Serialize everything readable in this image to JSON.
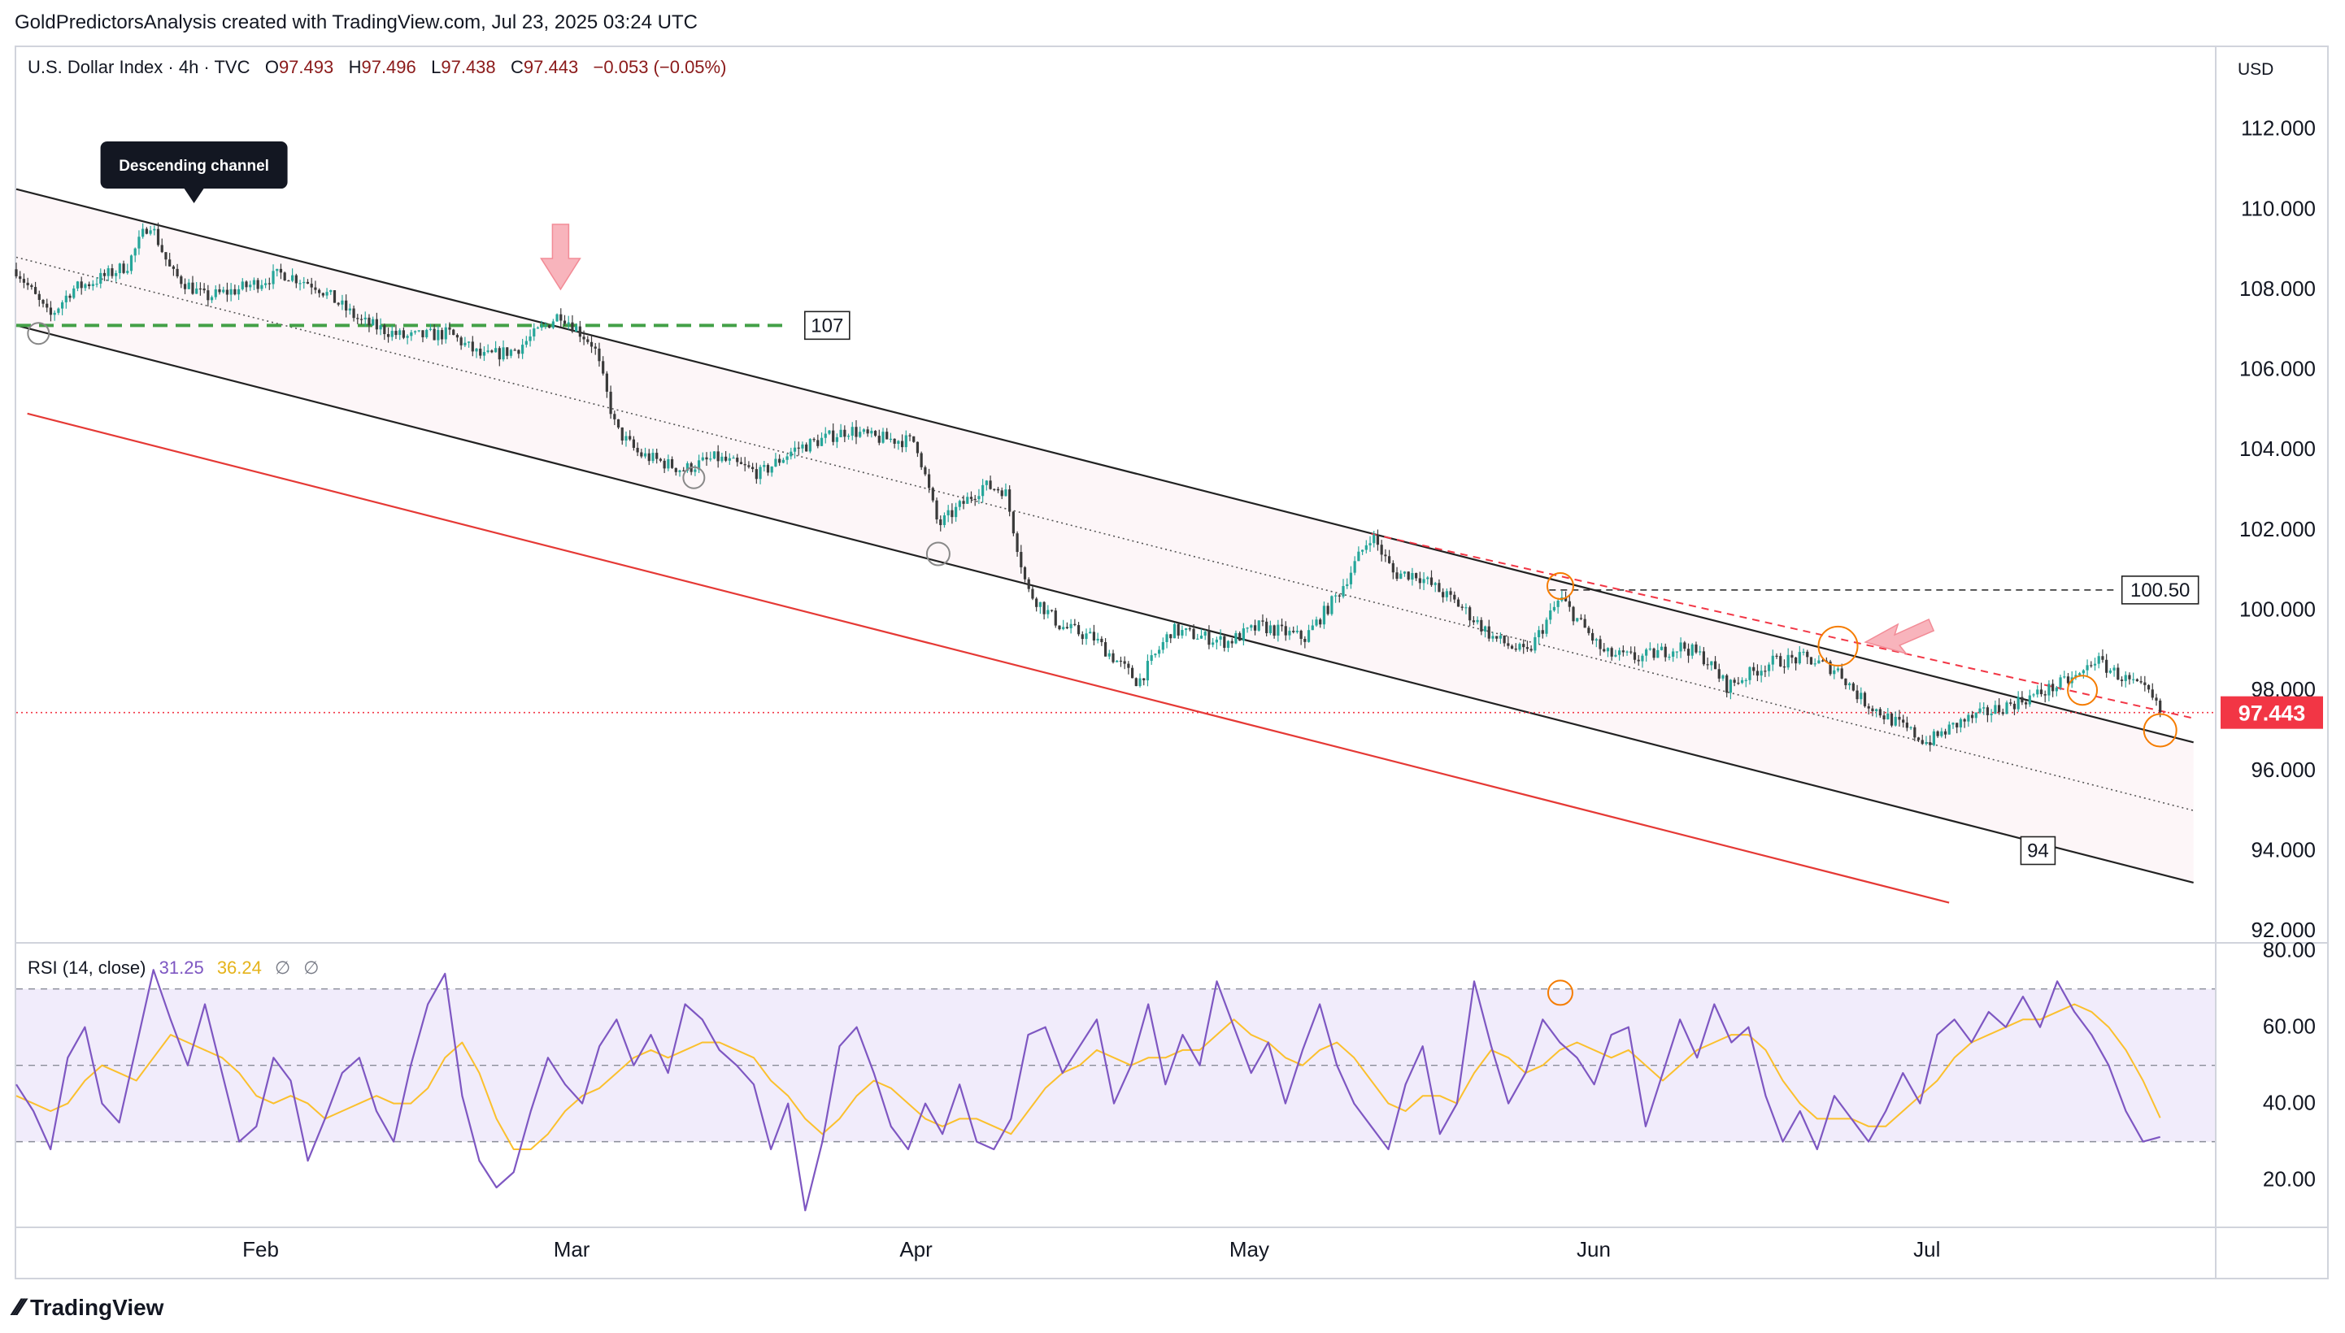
{
  "header": {
    "attribution": "GoldPredictorsAnalysis created with TradingView.com, Jul 23, 2025 03:24 UTC"
  },
  "symbol_legend": {
    "name": "U.S. Dollar Index · 4h · TVC",
    "o_label": "O",
    "o_value": "97.493",
    "h_label": "H",
    "h_value": "97.496",
    "l_label": "L",
    "l_value": "97.438",
    "c_label": "C",
    "c_value": "97.443",
    "change": "−0.053 (−0.05%)"
  },
  "currency": "USD",
  "rsi_legend": {
    "name": "RSI (14, close)",
    "rsi_value": "31.25",
    "ma_value": "36.24",
    "empty1": "∅",
    "empty2": "∅"
  },
  "footer": {
    "brand": "TradingView"
  },
  "colors": {
    "candle_up": "#26a69a",
    "candle_down": "#3a3a3a",
    "channel_line": "#222222",
    "channel_fill": "#fdf6f8",
    "lower_red_line": "#e53935",
    "support_dash": "#43a047",
    "price_line": "#f23645",
    "rsi_line": "#7e57c2",
    "rsi_ma": "#fbc02d",
    "rsi_band": "#f1ecfb",
    "orange_circle": "#f57c00",
    "arrow_pink": "#f8b4bc"
  },
  "chart_data": [
    {
      "type": "candlestick",
      "series_name": "U.S. Dollar Index",
      "timeframe": "4h",
      "x_ticks": [
        "Feb",
        "Mar",
        "Apr",
        "May",
        "Jun",
        "Jul"
      ],
      "y_ticks": [
        "92.000",
        "94.000",
        "96.000",
        "98.000",
        "100.000",
        "102.000",
        "104.000",
        "106.000",
        "108.000",
        "110.000",
        "112.000"
      ],
      "ylim": [
        91.8,
        114.0
      ],
      "last_price_label": "97.443",
      "path": [
        [
          "2025-01-10",
          108.5
        ],
        [
          "2025-01-13",
          107.3
        ],
        [
          "2025-01-15",
          108.0
        ],
        [
          "2025-01-17",
          108.2
        ],
        [
          "2025-01-20",
          108.6
        ],
        [
          "2025-01-22",
          109.7
        ],
        [
          "2025-01-24",
          108.4
        ],
        [
          "2025-01-27",
          107.8
        ],
        [
          "2025-01-30",
          108.0
        ],
        [
          "2025-02-03",
          108.4
        ],
        [
          "2025-02-06",
          108.1
        ],
        [
          "2025-02-10",
          107.2
        ],
        [
          "2025-02-14",
          106.8
        ],
        [
          "2025-02-18",
          106.9
        ],
        [
          "2025-02-21",
          106.3
        ],
        [
          "2025-02-24",
          106.5
        ],
        [
          "2025-02-28",
          107.4
        ],
        [
          "2025-03-03",
          106.6
        ],
        [
          "2025-03-05",
          104.5
        ],
        [
          "2025-03-07",
          103.9
        ],
        [
          "2025-03-11",
          103.5
        ],
        [
          "2025-03-14",
          103.8
        ],
        [
          "2025-03-18",
          103.4
        ],
        [
          "2025-03-21",
          104.0
        ],
        [
          "2025-03-26",
          104.5
        ],
        [
          "2025-03-28",
          104.3
        ],
        [
          "2025-04-01",
          104.2
        ],
        [
          "2025-04-03",
          102.1
        ],
        [
          "2025-04-07",
          103.1
        ],
        [
          "2025-04-09",
          103.0
        ],
        [
          "2025-04-11",
          100.5
        ],
        [
          "2025-04-14",
          99.6
        ],
        [
          "2025-04-17",
          99.3
        ],
        [
          "2025-04-21",
          98.2
        ],
        [
          "2025-04-24",
          99.5
        ],
        [
          "2025-04-29",
          99.2
        ],
        [
          "2025-05-02",
          99.6
        ],
        [
          "2025-05-06",
          99.3
        ],
        [
          "2025-05-09",
          100.4
        ],
        [
          "2025-05-12",
          101.9
        ],
        [
          "2025-05-14",
          100.9
        ],
        [
          "2025-05-16",
          100.9
        ],
        [
          "2025-05-20",
          100.1
        ],
        [
          "2025-05-23",
          99.3
        ],
        [
          "2025-05-26",
          98.9
        ],
        [
          "2025-05-29",
          100.3
        ],
        [
          "2025-06-02",
          98.9
        ],
        [
          "2025-06-05",
          98.8
        ],
        [
          "2025-06-09",
          99.1
        ],
        [
          "2025-06-11",
          98.8
        ],
        [
          "2025-06-13",
          98.1
        ],
        [
          "2025-06-17",
          98.7
        ],
        [
          "2025-06-20",
          98.8
        ],
        [
          "2025-06-23",
          98.5
        ],
        [
          "2025-06-25",
          97.8
        ],
        [
          "2025-06-27",
          97.4
        ],
        [
          "2025-07-01",
          96.7
        ],
        [
          "2025-07-04",
          97.2
        ],
        [
          "2025-07-08",
          97.6
        ],
        [
          "2025-07-11",
          97.9
        ],
        [
          "2025-07-15",
          98.4
        ],
        [
          "2025-07-16",
          98.8
        ],
        [
          "2025-07-17",
          98.6
        ],
        [
          "2025-07-21",
          97.9
        ],
        [
          "2025-07-22",
          97.443
        ]
      ],
      "annotations": {
        "channel_label": "Descending channel",
        "level_107": "107",
        "level_100_50": "100.50",
        "level_94": "94"
      },
      "channel": {
        "upper": [
          [
            "2025-01-10",
            110.5
          ],
          [
            "2025-07-25",
            96.7
          ]
        ],
        "lower": [
          [
            "2025-01-10",
            107.1
          ],
          [
            "2025-07-25",
            93.2
          ]
        ],
        "mid_dotted": [
          [
            "2025-01-10",
            108.8
          ],
          [
            "2025-07-25",
            95.0
          ]
        ],
        "red_parallel": [
          [
            "2025-01-11",
            104.9
          ],
          [
            "2025-07-03",
            92.7
          ]
        ],
        "support_107": [
          [
            "2025-01-10",
            107.1
          ],
          [
            "2025-03-20",
            107.1
          ]
        ],
        "resistance_100_50": [
          [
            "2025-05-28",
            100.5
          ],
          [
            "2025-07-18",
            100.5
          ]
        ],
        "red_dashed": [
          [
            "2025-05-12",
            101.9
          ],
          [
            "2025-07-25",
            97.3
          ]
        ]
      }
    },
    {
      "type": "line",
      "title": "RSI (14, close)",
      "y_ticks": [
        "20.00",
        "40.00",
        "60.00",
        "80.00"
      ],
      "ylim": [
        8,
        81
      ],
      "bands": [
        30,
        50,
        70
      ],
      "series": [
        {
          "name": "RSI",
          "values": [
            45,
            38,
            28,
            52,
            60,
            40,
            35,
            55,
            75,
            62,
            50,
            66,
            48,
            30,
            34,
            52,
            46,
            25,
            36,
            48,
            52,
            38,
            30,
            50,
            66,
            74,
            42,
            25,
            18,
            22,
            38,
            52,
            45,
            40,
            55,
            62,
            50,
            58,
            48,
            66,
            62,
            54,
            50,
            45,
            28,
            40,
            12,
            30,
            55,
            60,
            48,
            34,
            28,
            40,
            32,
            45,
            30,
            28,
            36,
            58,
            60,
            48,
            55,
            62,
            40,
            50,
            66,
            45,
            58,
            50,
            72,
            60,
            48,
            56,
            40,
            54,
            66,
            50,
            40,
            34,
            28,
            45,
            55,
            32,
            40,
            72,
            55,
            40,
            48,
            62,
            56,
            52,
            45,
            58,
            60,
            34,
            48,
            62,
            52,
            66,
            56,
            60,
            42,
            30,
            38,
            28,
            42,
            36,
            30,
            38,
            48,
            40,
            58,
            62,
            56,
            64,
            60,
            68,
            60,
            72,
            64,
            58,
            50,
            38,
            30,
            31.25
          ]
        },
        {
          "name": "MA",
          "values": [
            42,
            40,
            38,
            40,
            46,
            50,
            48,
            46,
            52,
            58,
            56,
            54,
            52,
            48,
            42,
            40,
            42,
            40,
            36,
            38,
            40,
            42,
            40,
            40,
            44,
            52,
            56,
            48,
            36,
            28,
            28,
            32,
            38,
            42,
            44,
            48,
            52,
            54,
            52,
            54,
            56,
            56,
            54,
            52,
            46,
            42,
            36,
            32,
            36,
            42,
            46,
            44,
            40,
            36,
            34,
            36,
            36,
            34,
            32,
            38,
            44,
            48,
            50,
            54,
            52,
            50,
            52,
            52,
            54,
            54,
            58,
            62,
            58,
            56,
            52,
            50,
            54,
            56,
            52,
            46,
            40,
            38,
            42,
            42,
            40,
            48,
            54,
            52,
            48,
            50,
            54,
            56,
            54,
            52,
            54,
            50,
            46,
            50,
            54,
            56,
            58,
            58,
            54,
            46,
            40,
            36,
            36,
            36,
            34,
            34,
            38,
            42,
            46,
            52,
            56,
            58,
            60,
            62,
            62,
            64,
            66,
            64,
            60,
            54,
            46,
            36.24
          ]
        }
      ]
    }
  ]
}
